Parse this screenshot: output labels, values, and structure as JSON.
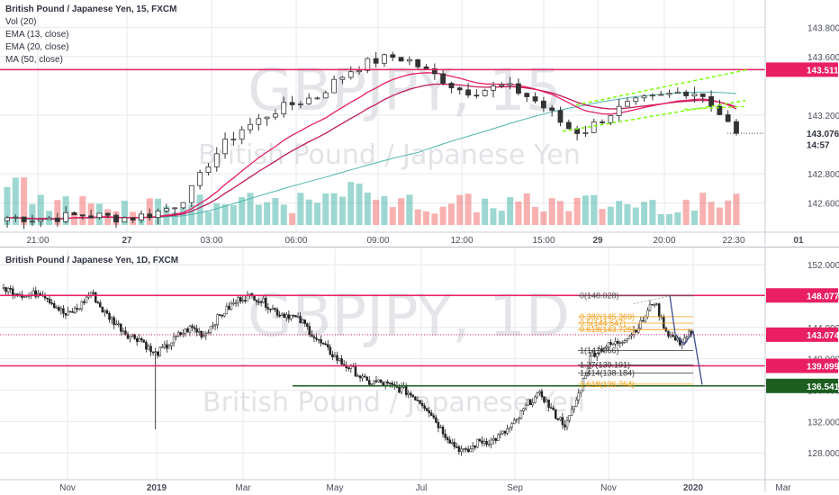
{
  "colors": {
    "up": "#26a69a",
    "down": "#ef5350",
    "ema13": "#e91e63",
    "ema20": "#c2185b",
    "ma50": "#4db6ac",
    "hline": "#e91e63",
    "support": "#1b5e20",
    "channel": "#76ff03",
    "fib": "#f39c12",
    "tag_red": "#e91e63",
    "tag_green": "#1b5e20",
    "grid": "#e6e8ee"
  },
  "top": {
    "title": "British Pound / Japanese Yen, 15, FXCM",
    "indicators": [
      "Vol (20)",
      "EMA (13, close)",
      "EMA (20, close)",
      "MA (50, close)"
    ],
    "watermark_symbol": "GBPJPY, 15",
    "watermark_name": "British Pound / Japanese Yen",
    "x_ticks": [
      "21:00",
      "27",
      "03:00",
      "06:00",
      "09:00",
      "12:00",
      "15:00",
      "29",
      "20:00",
      "22:30",
      "01"
    ],
    "y_ticks": [
      "143.800",
      "143.600",
      "143.200",
      "142.800",
      "142.600"
    ],
    "y_range": [
      142.45,
      143.95
    ],
    "price_tags": [
      {
        "value": "143.511",
        "price": 143.511,
        "style": "red"
      },
      {
        "value": "143.076",
        "price": 143.076,
        "style": "plain"
      },
      {
        "value": "14:57",
        "price": 143.0,
        "style": "plain"
      }
    ],
    "resistance": 143.511
  },
  "bottom": {
    "title": "British Pound / Japanese Yen, 1D, FXCM",
    "watermark_symbol": "GBPJPY, 1D",
    "watermark_name": "British Pound / Japanese Yen",
    "x_ticks": [
      "Nov",
      "2019",
      "Mar",
      "May",
      "Jul",
      "Sep",
      "Nov",
      "2020",
      "Mar"
    ],
    "y_ticks": [
      "152.000",
      "148.000",
      "144.000",
      "140.000",
      "136.000",
      "132.000",
      "128.000"
    ],
    "y_range": [
      125.5,
      153.5
    ],
    "price_tags": [
      {
        "value": "148.077",
        "price": 148.077,
        "style": "red"
      },
      {
        "value": "143.074",
        "price": 143.074,
        "style": "red"
      },
      {
        "value": "139.099",
        "price": 139.099,
        "style": "red"
      },
      {
        "value": "136.541",
        "price": 136.541,
        "style": "green"
      }
    ],
    "fib_labels": [
      {
        "text": "0(148.028)",
        "price": 148.028,
        "color": "#555555"
      },
      {
        "text": "0.382(145.369)",
        "price": 145.369,
        "color": "#f39c12"
      },
      {
        "text": "0.5(144.547)",
        "price": 144.547,
        "color": "#f39c12"
      },
      {
        "text": "0.618(143.726)",
        "price": 143.726,
        "color": "#f39c12"
      },
      {
        "text": "1(141.066)",
        "price": 141.066,
        "color": "#333333"
      },
      {
        "text": "1.27(139.191)",
        "price": 139.191,
        "color": "#333333"
      },
      {
        "text": "1.414(138.184)",
        "price": 138.184,
        "color": "#333333"
      },
      {
        "text": "1.618(136.764)",
        "price": 136.764,
        "color": "#f39c12"
      }
    ]
  },
  "chart_data": [
    {
      "type": "candlestick",
      "title": "British Pound / Japanese Yen, 15, FXCM",
      "x_ticks": [
        "21:00",
        "27",
        "03:00",
        "06:00",
        "09:00",
        "12:00",
        "15:00",
        "29",
        "20:00",
        "22:30",
        "01"
      ],
      "ylim": [
        142.45,
        143.95
      ],
      "series": [
        {
          "name": "EMA (13, close)"
        },
        {
          "name": "EMA (20, close)"
        },
        {
          "name": "MA (50, close)"
        },
        {
          "name": "Vol (20)"
        }
      ],
      "horizontal_lines": [
        143.511
      ],
      "close_approx": [
        142.5,
        142.5,
        142.49,
        142.5,
        142.51,
        142.52,
        142.51,
        142.5,
        142.5,
        142.52,
        142.55,
        142.6,
        142.7,
        142.88,
        143.0,
        143.1,
        143.15,
        143.22,
        143.26,
        143.3,
        143.33,
        143.42,
        143.5,
        143.55,
        143.58,
        143.6,
        143.57,
        143.5,
        143.45,
        143.38,
        143.36,
        143.38,
        143.4,
        143.36,
        143.3,
        143.22,
        143.12,
        143.08,
        143.15,
        143.22,
        143.27,
        143.3,
        143.32,
        143.35,
        143.37,
        143.33,
        143.2,
        143.076
      ],
      "last": 143.076
    },
    {
      "type": "candlestick",
      "title": "British Pound / Japanese Yen, 1D, FXCM",
      "x_ticks": [
        "Nov",
        "2019",
        "Mar",
        "May",
        "Jul",
        "Sep",
        "Nov",
        "2020",
        "Mar"
      ],
      "ylim": [
        125.5,
        153.5
      ],
      "horizontal_lines": [
        148.077,
        139.099,
        136.541
      ],
      "close_approx": [
        149.0,
        148.5,
        148.0,
        148.6,
        147.0,
        145.5,
        146.5,
        148.5,
        146.0,
        144.5,
        143.0,
        142.5,
        140.5,
        141.5,
        143.0,
        144.0,
        143.0,
        145.0,
        146.5,
        147.8,
        148.0,
        147.0,
        145.8,
        145.5,
        144.5,
        142.5,
        141.0,
        139.5,
        138.5,
        137.0,
        137.0,
        136.5,
        136.0,
        135.0,
        133.5,
        131.0,
        129.0,
        128.0,
        129.5,
        129.5,
        130.5,
        132.0,
        134.5,
        135.5,
        133.0,
        131.5,
        135.5,
        140.5,
        141.5,
        142.0,
        143.0,
        144.5,
        147.5,
        143.5,
        142.0,
        143.5
      ],
      "last": 143.074
    }
  ]
}
